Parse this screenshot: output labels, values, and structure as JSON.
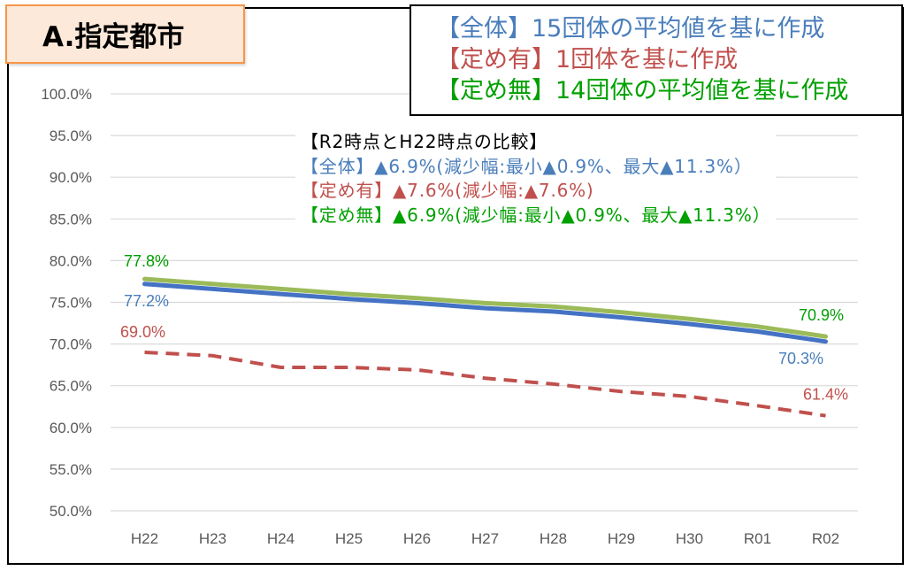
{
  "title_box": {
    "text": "A.指定都市",
    "background": "#fde9d9",
    "border": "#f79646"
  },
  "source_notes": [
    {
      "text": "【全体】15団体の平均値を基に作成",
      "color": "#4a7ebb"
    },
    {
      "text": "【定め有】1団体を基に作成",
      "color": "#c0504d"
    },
    {
      "text": "【定め無】14団体の平均値を基に作成",
      "color": "#00a000"
    }
  ],
  "comparison": {
    "heading": "【R2時点とH22時点の比較】",
    "heading_color": "#000000",
    "lines": [
      {
        "text": "【全体】▲6.9%(減少幅:最小▲0.9%、最大▲11.3%）",
        "color": "#4a7ebb"
      },
      {
        "text": "【定め有】▲7.6%(減少幅:▲7.6%)",
        "color": "#c0504d"
      },
      {
        "text": "【定め無】▲6.9%(減少幅:最小▲0.9%、最大▲11.3%）",
        "color": "#00a000"
      }
    ]
  },
  "chart_data": {
    "type": "line",
    "categories": [
      "H22",
      "H23",
      "H24",
      "H25",
      "H26",
      "H27",
      "H28",
      "H29",
      "H30",
      "R01",
      "R02"
    ],
    "ylim": [
      50,
      100
    ],
    "yticks": [
      {
        "value": 100,
        "label": "100.0%"
      },
      {
        "value": 95,
        "label": "95.0%"
      },
      {
        "value": 90,
        "label": "90.0%"
      },
      {
        "value": 85,
        "label": "85.0%"
      },
      {
        "value": 80,
        "label": "80.0%"
      },
      {
        "value": 75,
        "label": "75.0%"
      },
      {
        "value": 70,
        "label": "70.0%"
      },
      {
        "value": 65,
        "label": "65.0%"
      },
      {
        "value": 60,
        "label": "60.0%"
      },
      {
        "value": 55,
        "label": "55.0%"
      },
      {
        "value": 50,
        "label": "50.0%"
      }
    ],
    "grid": true,
    "series": [
      {
        "color": "#4472c4",
        "label_color": "#4a7ebb",
        "line_style": "solid",
        "values": [
          77.2,
          76.6,
          76.0,
          75.4,
          74.9,
          74.3,
          73.9,
          73.2,
          72.4,
          71.5,
          70.3
        ],
        "data_labels": [
          {
            "index": 0,
            "text": "77.2%"
          },
          {
            "index": 10,
            "text": "70.3%"
          }
        ]
      },
      {
        "color": "#c0504d",
        "label_color": "#c0504d",
        "line_style": "dashed",
        "values": [
          69.0,
          68.6,
          67.2,
          67.2,
          66.9,
          65.9,
          65.2,
          64.3,
          63.7,
          62.6,
          61.4
        ],
        "data_labels": [
          {
            "index": 0,
            "text": "69.0%"
          },
          {
            "index": 10,
            "text": "61.4%"
          }
        ]
      },
      {
        "color": "#9bbb59",
        "label_color": "#00a000",
        "line_style": "solid",
        "values": [
          77.8,
          77.2,
          76.6,
          76.0,
          75.5,
          74.9,
          74.5,
          73.8,
          73.0,
          72.1,
          70.9
        ],
        "data_labels": [
          {
            "index": 0,
            "text": "77.8%"
          },
          {
            "index": 10,
            "text": "70.9%"
          }
        ]
      }
    ]
  }
}
